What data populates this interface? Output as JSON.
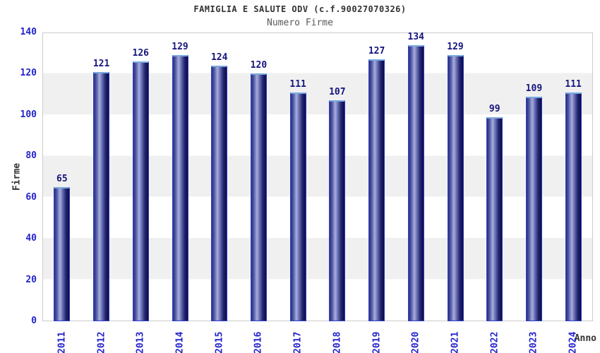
{
  "header": {
    "title": "FAMIGLIA E SALUTE ODV (c.f.90027070326)",
    "subtitle": "Numero Firme"
  },
  "chart_data": {
    "type": "bar",
    "title": "FAMIGLIA E SALUTE ODV (c.f.90027070326)",
    "subtitle": "Numero Firme",
    "xlabel": "Anno",
    "ylabel": "Firme",
    "categories": [
      "2011",
      "2012",
      "2013",
      "2014",
      "2015",
      "2016",
      "2017",
      "2018",
      "2019",
      "2020",
      "2021",
      "2022",
      "2023",
      "2024"
    ],
    "values": [
      65,
      121,
      126,
      129,
      124,
      120,
      111,
      107,
      127,
      134,
      129,
      99,
      109,
      111
    ],
    "ylim": [
      0,
      140
    ],
    "yticks": [
      0,
      20,
      40,
      60,
      80,
      100,
      120,
      140
    ],
    "grid": "alternating horizontal bands every 20 units",
    "legend": "none",
    "bar_labels_shown": true
  },
  "colors": {
    "axis_tick_blue": "#2323cd",
    "value_label_navy": "#15157d",
    "title_gray": "#333333",
    "subtitle_gray": "#595959",
    "band_gray": "#f0f0f0",
    "band_white": "#ffffff",
    "plot_border": "#cccccc",
    "bar_border_blue": "#2e3fc4",
    "bar_top_edge_lightblue": "#79a9e0",
    "bar_gradient": [
      "#2b3080",
      "#4a539f",
      "#a8aede",
      "#6a71b4",
      "#23256f",
      "#0b0b49"
    ]
  }
}
